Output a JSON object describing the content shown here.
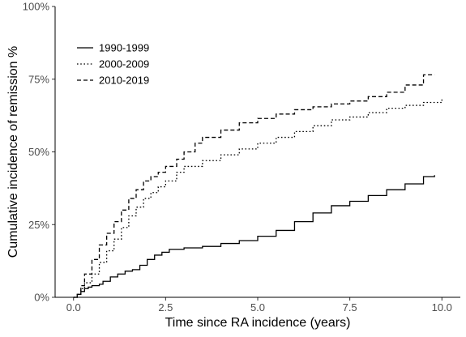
{
  "chart_data": {
    "type": "line",
    "title": "",
    "xlabel": "Time since RA incidence (years)",
    "ylabel": "Cumulative incidence of remission %",
    "xlim": [
      -0.5,
      10.5
    ],
    "ylim": [
      0,
      100
    ],
    "x_ticks": [
      0.0,
      2.5,
      5.0,
      7.5,
      10.0
    ],
    "x_tick_labels": [
      "0.0",
      "2.5",
      "5.0",
      "7.5",
      "10.0"
    ],
    "y_ticks": [
      0,
      25,
      50,
      75,
      100
    ],
    "y_tick_labels": [
      "0%",
      "25%",
      "50%",
      "75%",
      "100%"
    ],
    "grid": false,
    "legend_position": "top-left",
    "step": true,
    "series": [
      {
        "name": "1990-1999",
        "linestyle": "solid",
        "color": "#000000",
        "points": [
          [
            0,
            0
          ],
          [
            0.1,
            1
          ],
          [
            0.2,
            2
          ],
          [
            0.3,
            3
          ],
          [
            0.4,
            3.5
          ],
          [
            0.5,
            4
          ],
          [
            0.7,
            4.5
          ],
          [
            0.8,
            5.5
          ],
          [
            1.0,
            7
          ],
          [
            1.2,
            8
          ],
          [
            1.4,
            9
          ],
          [
            1.6,
            9.5
          ],
          [
            1.8,
            11
          ],
          [
            2.0,
            13
          ],
          [
            2.2,
            14.5
          ],
          [
            2.4,
            15.5
          ],
          [
            2.6,
            16.5
          ],
          [
            3.0,
            17
          ],
          [
            3.5,
            17.5
          ],
          [
            4.0,
            18.5
          ],
          [
            4.5,
            19.5
          ],
          [
            5.0,
            21
          ],
          [
            5.5,
            23
          ],
          [
            6.0,
            26
          ],
          [
            6.5,
            29
          ],
          [
            7.0,
            31.5
          ],
          [
            7.5,
            33
          ],
          [
            8.0,
            35
          ],
          [
            8.5,
            37
          ],
          [
            9.0,
            39
          ],
          [
            9.5,
            41.5
          ],
          [
            9.8,
            42
          ]
        ]
      },
      {
        "name": "2000-2009",
        "linestyle": "dotted",
        "color": "#000000",
        "points": [
          [
            0,
            0
          ],
          [
            0.1,
            1
          ],
          [
            0.2,
            3
          ],
          [
            0.3,
            5
          ],
          [
            0.5,
            8
          ],
          [
            0.7,
            12
          ],
          [
            0.9,
            16
          ],
          [
            1.1,
            20
          ],
          [
            1.3,
            24
          ],
          [
            1.5,
            28
          ],
          [
            1.7,
            31
          ],
          [
            1.9,
            34
          ],
          [
            2.1,
            36
          ],
          [
            2.3,
            38
          ],
          [
            2.5,
            40
          ],
          [
            2.8,
            43
          ],
          [
            3.0,
            45
          ],
          [
            3.5,
            47
          ],
          [
            4.0,
            49
          ],
          [
            4.5,
            51
          ],
          [
            5.0,
            53
          ],
          [
            5.5,
            55
          ],
          [
            6.0,
            57
          ],
          [
            6.5,
            59
          ],
          [
            7.0,
            61
          ],
          [
            7.5,
            62
          ],
          [
            8.0,
            63.5
          ],
          [
            8.5,
            65
          ],
          [
            9.0,
            66
          ],
          [
            9.5,
            67
          ],
          [
            10.0,
            68.5
          ]
        ]
      },
      {
        "name": "2010-2019",
        "linestyle": "dashed",
        "color": "#000000",
        "points": [
          [
            0,
            0
          ],
          [
            0.1,
            1
          ],
          [
            0.2,
            4
          ],
          [
            0.3,
            8
          ],
          [
            0.5,
            13
          ],
          [
            0.7,
            18
          ],
          [
            0.9,
            22
          ],
          [
            1.1,
            26
          ],
          [
            1.3,
            30
          ],
          [
            1.5,
            34
          ],
          [
            1.7,
            37
          ],
          [
            1.9,
            40
          ],
          [
            2.1,
            41.5
          ],
          [
            2.3,
            43
          ],
          [
            2.5,
            45
          ],
          [
            2.8,
            47.5
          ],
          [
            3.0,
            50
          ],
          [
            3.3,
            53
          ],
          [
            3.5,
            55
          ],
          [
            4.0,
            57.5
          ],
          [
            4.5,
            60
          ],
          [
            5.0,
            61.5
          ],
          [
            5.5,
            63
          ],
          [
            6.0,
            64.5
          ],
          [
            6.5,
            65.5
          ],
          [
            7.0,
            66.5
          ],
          [
            7.5,
            67.5
          ],
          [
            8.0,
            69
          ],
          [
            8.5,
            70.5
          ],
          [
            9.0,
            73
          ],
          [
            9.5,
            76.5
          ],
          [
            9.8,
            76.5
          ]
        ]
      }
    ]
  }
}
